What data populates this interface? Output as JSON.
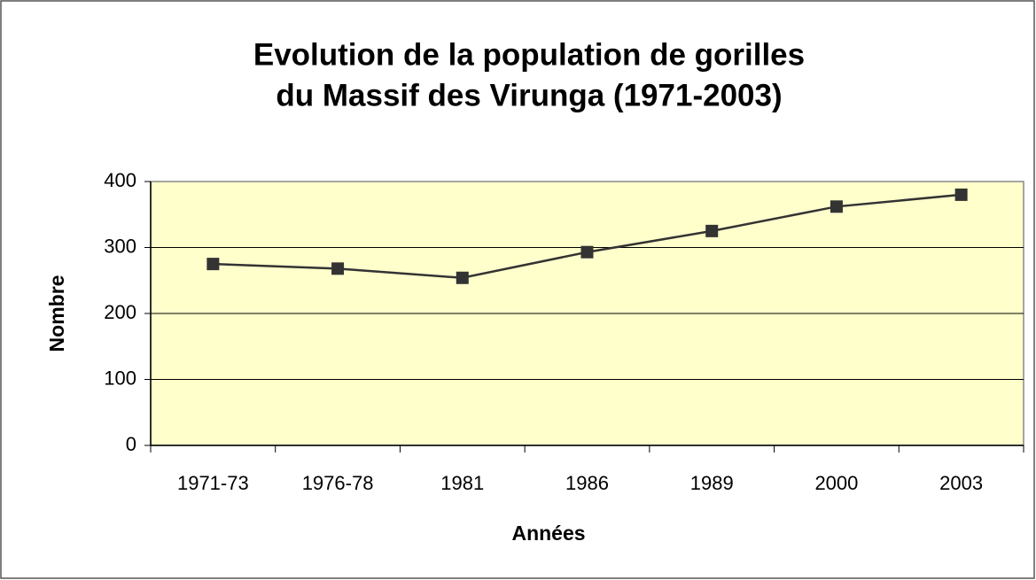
{
  "chart_data": {
    "type": "line",
    "title": [
      "Evolution de la population de gorilles",
      "du Massif des Virunga (1971-2003)"
    ],
    "x_label": "Années",
    "y_label": "Nombre",
    "categories": [
      "1971-73",
      "1976-78",
      "1981",
      "1986",
      "1989",
      "2000",
      "2003"
    ],
    "series": [
      {
        "name": "Nombre",
        "color": "#333333",
        "values": [
          275,
          268,
          254,
          293,
          325,
          362,
          380
        ]
      }
    ],
    "ylim": [
      0,
      400
    ],
    "yticks": [
      0,
      100,
      200,
      300,
      400
    ],
    "grid": true,
    "plot_background": "#ffffcc"
  }
}
